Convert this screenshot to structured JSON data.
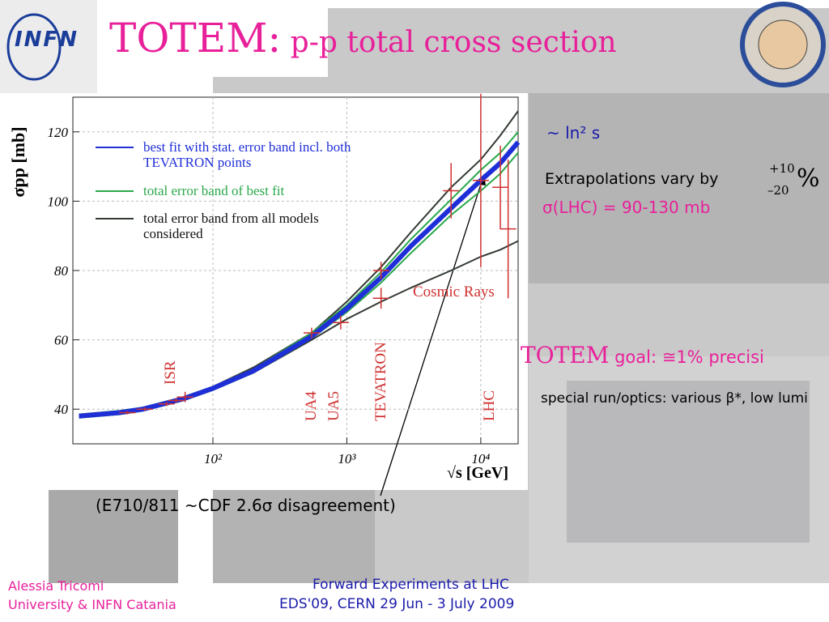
{
  "logo": "INFN",
  "header": {
    "title_main": "TOTEM:",
    "title_rest": " p-p total cross section"
  },
  "notes": {
    "asymptotic": "~ ln² s",
    "extrapolations": "Extrapolations vary by",
    "plus": "+10",
    "minus": "–20",
    "percent": "%",
    "lhc_range": "σ(LHC) = 90-130 mb",
    "goal_name": "TOTEM",
    "goal_text": " goal: ≅1% precisi",
    "special_run": "special run/optics: various β*, low lumi",
    "disagreement": "(E710/811 ~CDF 2.6σ disagreement)"
  },
  "footer": {
    "author": "Alessia Tricomi",
    "affiliation": "University & INFN Catania",
    "event": "Forward Experiments at LHC",
    "venue": "EDS'09, CERN 29 Jun - 3 July 2009"
  },
  "chart_data": {
    "type": "line",
    "ylabel": "σpp [mb]",
    "xlabel": "√s [GeV]",
    "xscale": "log",
    "xlim": [
      9,
      19000
    ],
    "ylim": [
      30,
      130
    ],
    "xticks": [
      {
        "value": 100,
        "label": "10²"
      },
      {
        "value": 1000,
        "label": "10³"
      },
      {
        "value": 10000,
        "label": "10⁴"
      }
    ],
    "yticks": [
      40,
      60,
      80,
      100,
      120
    ],
    "grid": true,
    "x": [
      10,
      20,
      30,
      60,
      100,
      200,
      546,
      1000,
      1800,
      3000,
      6000,
      10000,
      14000,
      19000
    ],
    "series": [
      {
        "name": "best fit with stat. error band incl. both TEVATRON points",
        "color": "#1f2fd8",
        "values": [
          38,
          39,
          40,
          43,
          46,
          51,
          61,
          69,
          78,
          87,
          98,
          106,
          111,
          117
        ]
      },
      {
        "name": "total error band of best fit",
        "color": "#2aa84a",
        "upper": [
          38.5,
          39.5,
          40.5,
          43.5,
          46.5,
          51.5,
          62,
          70,
          79.5,
          89,
          100.5,
          109,
          114,
          120
        ],
        "lower": [
          37.5,
          38.5,
          39.5,
          42.5,
          45.5,
          50.5,
          60.5,
          68,
          76.5,
          85,
          96,
          103,
          108,
          114
        ]
      },
      {
        "name": "total error band from all models considered",
        "color": "#333a33",
        "upper": [
          38,
          39,
          40,
          43,
          46.5,
          52,
          62,
          71,
          81,
          91,
          104,
          112,
          119,
          126
        ],
        "lower": [
          38,
          39,
          40,
          43,
          46,
          50.5,
          60,
          66,
          71,
          75,
          80,
          84,
          86,
          88.5
        ]
      }
    ],
    "measurements": {
      "color": "#d03030",
      "x": [
        23,
        31,
        45,
        53,
        62,
        546,
        900,
        1800,
        1800,
        6000,
        10000,
        14000,
        16000
      ],
      "values": [
        39,
        40,
        41.5,
        42.5,
        43.5,
        62,
        65,
        72,
        80,
        103,
        106,
        104,
        92
      ],
      "errors": [
        0.5,
        0.5,
        0.6,
        0.7,
        1.5,
        1.5,
        2,
        3,
        2.5,
        8,
        25,
        12,
        20
      ]
    },
    "annotations": {
      "cosmic": "Cosmic Rays",
      "isr": "ISR",
      "ua4": "UA4",
      "ua5": "UA5",
      "tevatron": "TEVATRON",
      "lhc": "LHC"
    }
  }
}
